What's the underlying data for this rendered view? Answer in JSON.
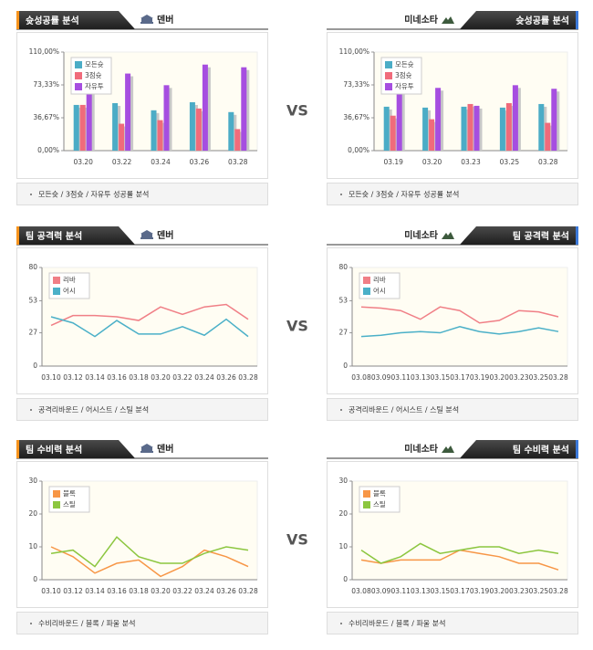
{
  "chart_data": [
    {
      "type": "bar",
      "title": "슛성공률 분석",
      "team": "덴버",
      "caption": "모든슛 / 3점슛 / 자유투 성공률 분석",
      "categories": [
        "03.20",
        "03.22",
        "03.24",
        "03.26",
        "03.28"
      ],
      "series": [
        {
          "name": "모든슛",
          "color": "#4bacc6",
          "values": [
            51,
            53,
            45,
            54,
            43
          ]
        },
        {
          "name": "3점슛",
          "color": "#f06b7b",
          "values": [
            51,
            30,
            34,
            47,
            24
          ]
        },
        {
          "name": "자유투",
          "color": "#a64ee0",
          "values": [
            88,
            86,
            73,
            96,
            93
          ]
        }
      ],
      "ylim": [
        0,
        110
      ],
      "yticks": [
        {
          "value": 0,
          "label": "0,00%"
        },
        {
          "value": 36.67,
          "label": "36,67%"
        },
        {
          "value": 73.33,
          "label": "73,33%"
        },
        {
          "value": 110,
          "label": "110,00%"
        }
      ]
    },
    {
      "type": "bar",
      "title": "슛성공률 분석",
      "team": "미네소타",
      "caption": "모든슛 / 3점슛 / 자유투 성공률 분석",
      "categories": [
        "03.19",
        "03.20",
        "03.23",
        "03.25",
        "03.28"
      ],
      "series": [
        {
          "name": "모든슛",
          "color": "#4bacc6",
          "values": [
            49,
            48,
            49,
            48,
            52
          ]
        },
        {
          "name": "3점슛",
          "color": "#f06b7b",
          "values": [
            39,
            35,
            52,
            53,
            31
          ]
        },
        {
          "name": "자유투",
          "color": "#a64ee0",
          "values": [
            88,
            70,
            50,
            73,
            69
          ]
        }
      ],
      "ylim": [
        0,
        110
      ],
      "yticks": [
        {
          "value": 0,
          "label": "0,00%"
        },
        {
          "value": 36.67,
          "label": "36,67%"
        },
        {
          "value": 73.33,
          "label": "73,33%"
        },
        {
          "value": 110,
          "label": "110,00%"
        }
      ]
    },
    {
      "type": "line",
      "title": "팀 공격력 분석",
      "team": "덴버",
      "caption": "공격리바운드 / 어시스트 / 스틸 분석",
      "categories": [
        "03.10",
        "03.12",
        "03.14",
        "03.16",
        "03.18",
        "03.20",
        "03.22",
        "03.24",
        "03.26",
        "03.28"
      ],
      "series": [
        {
          "name": "리바",
          "color": "#f07f86",
          "values": [
            33,
            41,
            41,
            40,
            37,
            48,
            42,
            48,
            50,
            38
          ]
        },
        {
          "name": "어시",
          "color": "#4bb0c8",
          "values": [
            40,
            35,
            24,
            37,
            26,
            26,
            32,
            25,
            38,
            24
          ]
        }
      ],
      "ylim": [
        0,
        80
      ],
      "yticks": [
        0,
        27,
        53,
        80
      ]
    },
    {
      "type": "line",
      "title": "팀 공격력 분석",
      "team": "미네소타",
      "caption": "공격리바운드 / 어시스트 / 스틸 분석",
      "categories": [
        "03.08",
        "03.09",
        "03.11",
        "03.13",
        "03.15",
        "03.17",
        "03.19",
        "03.20",
        "03.23",
        "03.25",
        "03.28"
      ],
      "series": [
        {
          "name": "리바",
          "color": "#f07f86",
          "values": [
            48,
            47,
            45,
            38,
            48,
            45,
            35,
            37,
            45,
            44,
            40
          ]
        },
        {
          "name": "어시",
          "color": "#4bb0c8",
          "values": [
            24,
            25,
            27,
            28,
            27,
            32,
            28,
            26,
            28,
            31,
            28
          ]
        }
      ],
      "ylim": [
        0,
        80
      ],
      "yticks": [
        0,
        27,
        53,
        80
      ]
    },
    {
      "type": "line",
      "title": "팀 수비력 분석",
      "team": "덴버",
      "caption": "수비리바운드 / 블록 / 파울 분석",
      "categories": [
        "03.10",
        "03.12",
        "03.14",
        "03.16",
        "03.18",
        "03.20",
        "03.22",
        "03.24",
        "03.26",
        "03.28"
      ],
      "series": [
        {
          "name": "블록",
          "color": "#f79646",
          "values": [
            10,
            7,
            2,
            5,
            6,
            1,
            4,
            9,
            7,
            4
          ]
        },
        {
          "name": "스틸",
          "color": "#8cc63f",
          "values": [
            8,
            9,
            4,
            13,
            7,
            5,
            5,
            8,
            10,
            9
          ]
        }
      ],
      "ylim": [
        0,
        30
      ],
      "yticks": [
        0,
        10,
        20,
        30
      ]
    },
    {
      "type": "line",
      "title": "팀 수비력 분석",
      "team": "미네소타",
      "caption": "수비리바운드 / 블록 / 파울 분석",
      "categories": [
        "03.08",
        "03.09",
        "03.11",
        "03.13",
        "03.15",
        "03.17",
        "03.19",
        "03.20",
        "03.23",
        "03.25",
        "03.28"
      ],
      "series": [
        {
          "name": "블록",
          "color": "#f79646",
          "values": [
            6,
            5,
            6,
            6,
            6,
            9,
            8,
            7,
            5,
            5,
            3
          ]
        },
        {
          "name": "스틸",
          "color": "#8cc63f",
          "values": [
            9,
            5,
            7,
            11,
            8,
            9,
            10,
            10,
            8,
            9,
            8
          ]
        }
      ],
      "ylim": [
        0,
        30
      ],
      "yticks": [
        0,
        10,
        20,
        30
      ]
    }
  ],
  "vs": [
    "VS",
    "VS",
    "VS"
  ]
}
